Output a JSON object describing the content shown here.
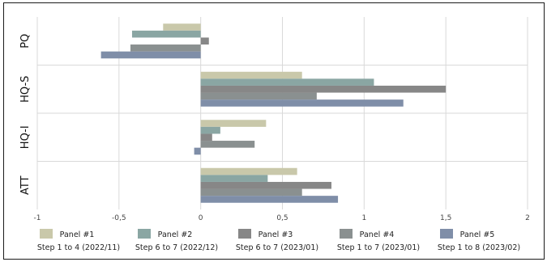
{
  "colors": {
    "frame": "#1a1a1a",
    "grid": "#d9d9d9",
    "axis_text": "#444444"
  },
  "chart_data": {
    "type": "bar",
    "orientation": "horizontal",
    "categories": [
      "PQ",
      "HQ-S",
      "HQ-I",
      "ATT"
    ],
    "xlim": [
      -1,
      2
    ],
    "xticks": [
      -1,
      -0.5,
      0,
      0.5,
      1,
      1.5,
      2
    ],
    "xtick_labels": [
      "-1",
      "-0,5",
      "0",
      "0,5",
      "1",
      "1,5",
      "2"
    ],
    "grid": true,
    "legend_position": "bottom",
    "series": [
      {
        "name": "Panel #1",
        "subtitle": "Step 1 to 4 (2022/11)",
        "color": "#c9c8aa",
        "values": [
          -0.23,
          0.62,
          0.4,
          0.59
        ]
      },
      {
        "name": "Panel #2",
        "subtitle": "Step 6 to 7 (2022/12)",
        "color": "#8aa6a3",
        "values": [
          -0.42,
          1.06,
          0.12,
          0.41
        ]
      },
      {
        "name": "Panel #3",
        "subtitle": "Step 6 to 7 (2023/01)",
        "color": "#878787",
        "values": [
          0.05,
          1.5,
          0.07,
          0.8
        ]
      },
      {
        "name": "Panel #4",
        "subtitle": "Step 1 to 7 (2023/01)",
        "color": "#8a9090",
        "values": [
          -0.43,
          0.71,
          0.33,
          0.62
        ]
      },
      {
        "name": "Panel #5",
        "subtitle": "Step 1 to 8 (2023/02)",
        "color": "#7f8ea8",
        "values": [
          -0.61,
          1.24,
          -0.04,
          0.84
        ]
      }
    ]
  }
}
